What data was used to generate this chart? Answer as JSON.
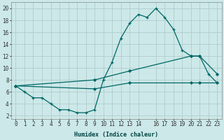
{
  "xlabel": "Humidex (Indice chaleur)",
  "background_color": "#cce8e8",
  "grid_color": "#b0cccc",
  "line_color": "#006666",
  "xlim": [
    -0.5,
    23.5
  ],
  "ylim": [
    1.5,
    21
  ],
  "xtick_positions": [
    0,
    1,
    2,
    3,
    4,
    5,
    6,
    7,
    8,
    9,
    10,
    11,
    12,
    13,
    14,
    16,
    17,
    18,
    19,
    20,
    21,
    22,
    23
  ],
  "xtick_labels": [
    "0",
    "1",
    "2",
    "3",
    "4",
    "5",
    "6",
    "7",
    "8",
    "9",
    "10",
    "11",
    "12",
    "13",
    "14",
    "16",
    "17",
    "18",
    "19",
    "20",
    "21",
    "22",
    "23"
  ],
  "ytick_positions": [
    2,
    4,
    6,
    8,
    10,
    12,
    14,
    16,
    18,
    20
  ],
  "ytick_labels": [
    "2",
    "4",
    "6",
    "8",
    "10",
    "12",
    "14",
    "16",
    "18",
    "20"
  ],
  "line1_x": [
    0,
    1,
    2,
    3,
    4,
    5,
    6,
    7,
    8,
    9,
    10,
    11,
    12,
    13,
    14,
    15,
    16,
    17,
    18,
    19,
    20,
    21,
    22,
    23
  ],
  "line1_y": [
    7,
    6,
    5,
    5,
    4,
    3,
    3,
    2.5,
    2.5,
    3,
    8,
    11,
    15,
    17.5,
    19,
    18.5,
    20,
    18.5,
    16.5,
    13,
    12,
    12,
    9,
    7.5
  ],
  "line2_x": [
    0,
    9,
    13,
    20,
    21,
    23
  ],
  "line2_y": [
    7,
    8,
    9.5,
    12,
    12,
    9
  ],
  "line3_x": [
    0,
    9,
    13,
    20,
    21,
    23
  ],
  "line3_y": [
    7,
    6.5,
    7.5,
    7.5,
    7.5,
    7.5
  ],
  "figsize": [
    3.2,
    2.0
  ],
  "dpi": 100
}
